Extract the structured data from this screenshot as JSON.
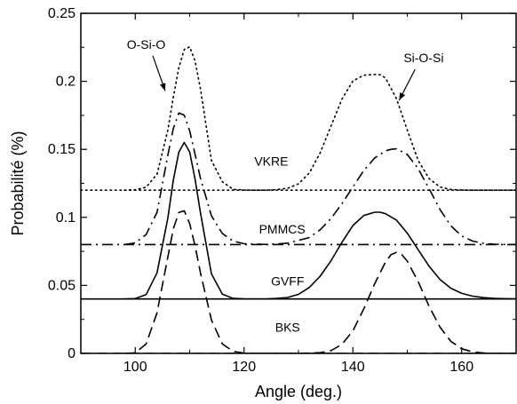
{
  "chart_data": {
    "type": "line",
    "title": "",
    "xlabel": "Angle (deg.)",
    "ylabel": "Probabilité (%)",
    "xlim": [
      90,
      170
    ],
    "ylim": [
      0,
      0.25
    ],
    "xticks": [
      100,
      120,
      140,
      160
    ],
    "xtick_labels": [
      "100",
      "120",
      "140",
      "160"
    ],
    "yticks": [
      0,
      0.05,
      0.1,
      0.15,
      0.2,
      0.25
    ],
    "ytick_labels": [
      "0",
      "0.05",
      "0.1",
      "0.15",
      "0.2",
      "0.25"
    ],
    "grid": false,
    "legend": "none",
    "annotations": [
      {
        "text": "O-Si-O",
        "x": 102,
        "y": 0.224,
        "arrow_to": [
          105.5,
          0.193
        ]
      },
      {
        "text": "Si-O-Si",
        "x": 153,
        "y": 0.214,
        "arrow_to": [
          148.5,
          0.186
        ]
      }
    ],
    "series": [
      {
        "label": "VKRE",
        "style": "dotted",
        "baseline": 0.12,
        "label_pos": [
          125,
          0.138
        ],
        "x": [
          98,
          100,
          102,
          104,
          106,
          107,
          108,
          109,
          110,
          111,
          112,
          114,
          116,
          118,
          120,
          122,
          124,
          126,
          128,
          130,
          132,
          134,
          136,
          138,
          140,
          142,
          144,
          145,
          146,
          148,
          150,
          152,
          154,
          156,
          158,
          160,
          162,
          164,
          166,
          168,
          170
        ],
        "y": [
          0.12,
          0.1203,
          0.1221,
          0.1318,
          0.1643,
          0.1882,
          0.2099,
          0.2234,
          0.2254,
          0.2149,
          0.194,
          0.1419,
          0.1262,
          0.1206,
          0.1201,
          0.12,
          0.12,
          0.1204,
          0.1214,
          0.1246,
          0.1327,
          0.1475,
          0.1674,
          0.187,
          0.2003,
          0.2045,
          0.205,
          0.2048,
          0.2025,
          0.1873,
          0.1642,
          0.1417,
          0.1285,
          0.1223,
          0.1205,
          0.1201,
          0.12,
          0.12,
          0.12,
          0.12,
          0.12
        ]
      },
      {
        "label": "PMMCS",
        "style": "dashdot",
        "baseline": 0.08,
        "label_pos": [
          127,
          0.088
        ],
        "x": [
          98,
          100,
          102,
          104,
          106,
          107,
          108,
          109,
          110,
          111,
          112,
          114,
          116,
          118,
          120,
          124,
          128,
          132,
          134,
          136,
          138,
          140,
          142,
          144,
          146,
          147,
          148,
          150,
          152,
          154,
          156,
          158,
          160,
          162,
          164,
          166,
          168,
          170
        ],
        "y": [
          0.08,
          0.0812,
          0.0874,
          0.1037,
          0.1459,
          0.1653,
          0.1767,
          0.1752,
          0.1637,
          0.1464,
          0.1283,
          0.1012,
          0.0881,
          0.0826,
          0.0806,
          0.0801,
          0.081,
          0.0852,
          0.0909,
          0.0993,
          0.1101,
          0.1224,
          0.1344,
          0.1437,
          0.1489,
          0.15,
          0.1504,
          0.1462,
          0.1357,
          0.1211,
          0.1058,
          0.0938,
          0.0863,
          0.0826,
          0.0809,
          0.0803,
          0.0801,
          0.08
        ]
      },
      {
        "label": "GVFF",
        "style": "solid",
        "baseline": 0.04,
        "label_pos": [
          128,
          0.05
        ],
        "x": [
          98,
          100,
          102,
          104,
          106,
          107,
          108,
          109,
          110,
          111,
          112,
          114,
          116,
          118,
          120,
          122,
          124,
          126,
          128,
          130,
          132,
          134,
          136,
          138,
          140,
          142,
          144,
          145,
          146,
          148,
          150,
          152,
          154,
          156,
          158,
          160,
          162,
          164,
          166,
          168,
          170
        ],
        "y": [
          0.04,
          0.0403,
          0.0432,
          0.0593,
          0.0997,
          0.1273,
          0.1479,
          0.155,
          0.1481,
          0.128,
          0.1029,
          0.0585,
          0.0436,
          0.0404,
          0.0401,
          0.04,
          0.04,
          0.0404,
          0.0411,
          0.0434,
          0.0485,
          0.0568,
          0.0683,
          0.0817,
          0.094,
          0.1014,
          0.1038,
          0.1038,
          0.1027,
          0.098,
          0.0884,
          0.0762,
          0.0641,
          0.0544,
          0.0479,
          0.0441,
          0.0421,
          0.041,
          0.0405,
          0.0402,
          0.0401
        ]
      },
      {
        "label": "BKS",
        "style": "dashed",
        "baseline": 0.0,
        "label_pos": [
          128,
          0.016
        ],
        "x": [
          98,
          100,
          102,
          104,
          106,
          107,
          108,
          109,
          110,
          111,
          112,
          114,
          116,
          118,
          120,
          122,
          126,
          130,
          134,
          136,
          138,
          140,
          142,
          144,
          146,
          147,
          148,
          149,
          150,
          152,
          154,
          156,
          158,
          160,
          162,
          164,
          166,
          168,
          170
        ],
        "y": [
          0.0,
          0.0004,
          0.0069,
          0.0299,
          0.0711,
          0.0915,
          0.1035,
          0.1048,
          0.0955,
          0.079,
          0.0588,
          0.0246,
          0.0069,
          0.0015,
          0.0002,
          0.0,
          0.0,
          0.0,
          0.0005,
          0.0021,
          0.0067,
          0.0166,
          0.0327,
          0.0512,
          0.0672,
          0.0725,
          0.0743,
          0.0725,
          0.0678,
          0.0527,
          0.0347,
          0.0193,
          0.0089,
          0.0034,
          0.0011,
          0.0003,
          0.0,
          0.0,
          0.0
        ]
      }
    ]
  }
}
